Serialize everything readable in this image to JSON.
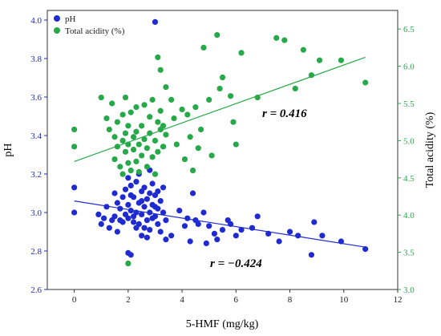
{
  "chart_data": {
    "type": "scatter",
    "xlabel": "5-HMF (mg/kg)",
    "ylabel_left": "pH",
    "ylabel_right": "Total acidity (%)",
    "xlim": [
      -1,
      12
    ],
    "ylim_left": [
      2.6,
      4.05
    ],
    "ylim_right": [
      3.0,
      6.75
    ],
    "x_ticks": [
      0,
      2,
      4,
      6,
      8,
      10,
      12
    ],
    "y_left_ticks": [
      2.6,
      2.8,
      3.0,
      3.2,
      3.4,
      3.6,
      3.8,
      4.0
    ],
    "y_right_ticks": [
      3.0,
      3.5,
      4.0,
      4.5,
      5.0,
      5.5,
      6.0,
      6.5
    ],
    "legend": {
      "placement": "top-left",
      "entries": [
        "pH",
        "Total acidity (%)"
      ]
    },
    "series": [
      {
        "name": "pH",
        "axis": "left",
        "color": "#1f2bd0",
        "points": [
          [
            0.0,
            3.13
          ],
          [
            0.0,
            3.0
          ],
          [
            2.0,
            2.79
          ],
          [
            2.1,
            2.78
          ],
          [
            3.0,
            3.99
          ],
          [
            0.9,
            2.99
          ],
          [
            1.0,
            2.94
          ],
          [
            1.1,
            2.97
          ],
          [
            1.2,
            3.03
          ],
          [
            1.3,
            2.92
          ],
          [
            1.4,
            2.96
          ],
          [
            1.5,
            2.98
          ],
          [
            1.6,
            3.05
          ],
          [
            1.6,
            2.9
          ],
          [
            1.7,
            3.02
          ],
          [
            1.8,
            3.08
          ],
          [
            1.8,
            2.95
          ],
          [
            1.9,
            2.99
          ],
          [
            1.9,
            3.12
          ],
          [
            2.0,
            3.04
          ],
          [
            2.0,
            2.97
          ],
          [
            2.0,
            3.18
          ],
          [
            2.1,
            3.01
          ],
          [
            2.1,
            3.14
          ],
          [
            2.2,
            2.95
          ],
          [
            2.2,
            3.08
          ],
          [
            2.3,
            3.0
          ],
          [
            2.3,
            3.16
          ],
          [
            2.3,
            2.92
          ],
          [
            2.4,
            3.05
          ],
          [
            2.4,
            3.2
          ],
          [
            2.5,
            2.99
          ],
          [
            2.5,
            3.11
          ],
          [
            2.5,
            2.88
          ],
          [
            2.6,
            3.03
          ],
          [
            2.6,
            3.13
          ],
          [
            2.7,
            2.96
          ],
          [
            2.7,
            3.07
          ],
          [
            2.8,
            3.0
          ],
          [
            2.8,
            3.22
          ],
          [
            2.8,
            2.91
          ],
          [
            2.9,
            3.04
          ],
          [
            2.9,
            3.15
          ],
          [
            3.0,
            2.98
          ],
          [
            3.0,
            3.09
          ],
          [
            3.1,
            2.94
          ],
          [
            3.1,
            3.02
          ],
          [
            3.2,
            3.06
          ],
          [
            3.2,
            2.9
          ],
          [
            3.3,
            3.0
          ],
          [
            3.3,
            3.13
          ],
          [
            3.4,
            2.96
          ],
          [
            3.4,
            2.86
          ],
          [
            2.2,
            2.98
          ],
          [
            2.4,
            2.94
          ],
          [
            2.6,
            2.92
          ],
          [
            2.8,
            3.1
          ],
          [
            3.0,
            3.03
          ],
          [
            2.1,
            3.09
          ],
          [
            1.7,
            2.96
          ],
          [
            2.5,
            3.06
          ],
          [
            2.7,
            2.87
          ],
          [
            3.1,
            3.11
          ],
          [
            1.5,
            3.1
          ],
          [
            2.9,
            2.97
          ],
          [
            3.6,
            2.88
          ],
          [
            3.9,
            3.01
          ],
          [
            4.1,
            2.93
          ],
          [
            4.2,
            2.97
          ],
          [
            4.3,
            2.85
          ],
          [
            4.4,
            3.1
          ],
          [
            4.5,
            2.96
          ],
          [
            4.6,
            2.94
          ],
          [
            4.8,
            3.0
          ],
          [
            4.9,
            2.84
          ],
          [
            5.0,
            2.93
          ],
          [
            5.2,
            2.89
          ],
          [
            5.3,
            2.86
          ],
          [
            5.5,
            2.91
          ],
          [
            5.7,
            2.96
          ],
          [
            5.8,
            2.94
          ],
          [
            6.0,
            2.88
          ],
          [
            6.2,
            2.91
          ],
          [
            6.6,
            2.92
          ],
          [
            6.8,
            2.98
          ],
          [
            7.2,
            2.89
          ],
          [
            7.6,
            2.85
          ],
          [
            8.0,
            2.9
          ],
          [
            8.3,
            2.88
          ],
          [
            8.8,
            2.78
          ],
          [
            8.9,
            2.95
          ],
          [
            9.2,
            2.88
          ],
          [
            9.9,
            2.85
          ],
          [
            10.8,
            2.81
          ]
        ],
        "trendline": {
          "from": [
            0,
            3.06
          ],
          "to": [
            10.8,
            2.82
          ]
        },
        "annotation": "r = −0.424"
      },
      {
        "name": "Total acidity (%)",
        "axis": "right",
        "color": "#27a94a",
        "points": [
          [
            0.0,
            5.15
          ],
          [
            0.0,
            4.92
          ],
          [
            1.0,
            5.58
          ],
          [
            1.2,
            5.3
          ],
          [
            1.3,
            5.15
          ],
          [
            1.4,
            5.5
          ],
          [
            1.5,
            5.05
          ],
          [
            1.5,
            4.75
          ],
          [
            1.6,
            5.25
          ],
          [
            1.6,
            4.92
          ],
          [
            1.7,
            4.65
          ],
          [
            1.8,
            5.35
          ],
          [
            1.8,
            5.0
          ],
          [
            1.8,
            4.55
          ],
          [
            1.9,
            5.1
          ],
          [
            1.9,
            4.85
          ],
          [
            1.9,
            5.58
          ],
          [
            2.0,
            4.95
          ],
          [
            2.0,
            5.2
          ],
          [
            2.0,
            4.7
          ],
          [
            2.0,
            3.35
          ],
          [
            2.1,
            5.38
          ],
          [
            2.1,
            4.6
          ],
          [
            2.2,
            5.05
          ],
          [
            2.2,
            4.88
          ],
          [
            2.3,
            5.12
          ],
          [
            2.3,
            4.72
          ],
          [
            2.3,
            5.45
          ],
          [
            2.4,
            4.95
          ],
          [
            2.4,
            4.58
          ],
          [
            2.5,
            5.2
          ],
          [
            2.5,
            4.8
          ],
          [
            2.6,
            5.02
          ],
          [
            2.6,
            5.48
          ],
          [
            2.7,
            4.9
          ],
          [
            2.7,
            4.65
          ],
          [
            2.8,
            5.1
          ],
          [
            2.8,
            5.32
          ],
          [
            2.9,
            4.78
          ],
          [
            2.9,
            5.55
          ],
          [
            3.0,
            5.0
          ],
          [
            3.0,
            4.55
          ],
          [
            3.1,
            5.25
          ],
          [
            3.1,
            4.85
          ],
          [
            3.2,
            5.15
          ],
          [
            3.2,
            5.4
          ],
          [
            3.3,
            4.92
          ],
          [
            3.3,
            5.2
          ],
          [
            3.4,
            5.08
          ],
          [
            3.1,
            6.12
          ],
          [
            3.2,
            5.95
          ],
          [
            3.4,
            5.72
          ],
          [
            3.6,
            5.55
          ],
          [
            3.7,
            5.3
          ],
          [
            3.8,
            4.95
          ],
          [
            4.0,
            5.42
          ],
          [
            4.1,
            4.75
          ],
          [
            4.2,
            5.35
          ],
          [
            4.3,
            5.05
          ],
          [
            4.4,
            4.6
          ],
          [
            4.5,
            5.45
          ],
          [
            4.6,
            4.9
          ],
          [
            4.7,
            5.15
          ],
          [
            4.8,
            6.25
          ],
          [
            5.0,
            5.55
          ],
          [
            5.1,
            4.8
          ],
          [
            5.3,
            6.42
          ],
          [
            5.4,
            5.7
          ],
          [
            5.5,
            5.85
          ],
          [
            5.8,
            5.6
          ],
          [
            5.9,
            5.25
          ],
          [
            6.0,
            4.95
          ],
          [
            6.2,
            6.18
          ],
          [
            6.8,
            5.58
          ],
          [
            7.5,
            6.38
          ],
          [
            7.8,
            6.35
          ],
          [
            8.2,
            5.7
          ],
          [
            8.5,
            6.22
          ],
          [
            8.8,
            5.88
          ],
          [
            9.1,
            6.08
          ],
          [
            9.9,
            6.08
          ],
          [
            10.8,
            5.78
          ]
        ],
        "trendline": {
          "from": [
            0,
            4.72
          ],
          "to": [
            10.8,
            6.12
          ]
        },
        "annotation": "r = 0.416"
      }
    ]
  }
}
